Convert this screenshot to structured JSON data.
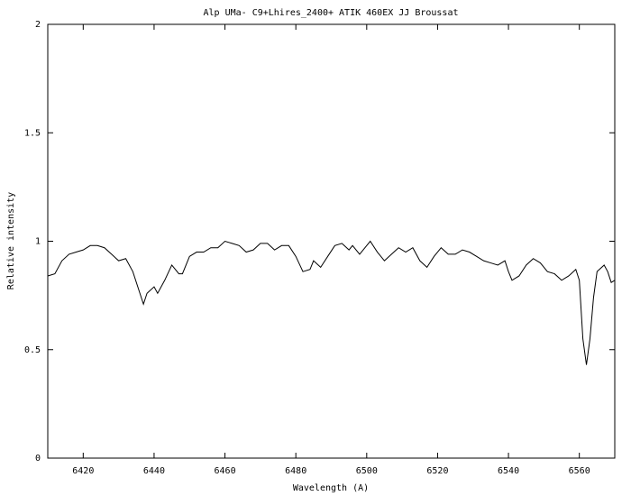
{
  "chart_data": {
    "type": "line",
    "title": "Alp UMa- C9+Lhires_2400+ ATIK 460EX  JJ Broussat",
    "xlabel": "Wavelength (A)",
    "ylabel": "Relative intensity",
    "x": [
      6410,
      6412,
      6414,
      6416,
      6418,
      6420,
      6422,
      6424,
      6426,
      6428,
      6430,
      6432,
      6434,
      6436,
      6437,
      6438,
      6440,
      6441,
      6443,
      6445,
      6447,
      6448,
      6450,
      6452,
      6454,
      6456,
      6458,
      6460,
      6462,
      6464,
      6466,
      6468,
      6470,
      6472,
      6474,
      6476,
      6478,
      6480,
      6482,
      6484,
      6485,
      6487,
      6489,
      6491,
      6493,
      6495,
      6496,
      6498,
      6500,
      6501,
      6503,
      6505,
      6507,
      6509,
      6511,
      6513,
      6515,
      6517,
      6519,
      6521,
      6523,
      6525,
      6527,
      6529,
      6531,
      6533,
      6535,
      6537,
      6539,
      6540,
      6541,
      6543,
      6545,
      6547,
      6549,
      6551,
      6553,
      6555,
      6557,
      6559,
      6560,
      6561,
      6562,
      6563,
      6564,
      6565,
      6567,
      6568,
      6569,
      6570
    ],
    "series": [
      {
        "name": "Alp UMa",
        "color": "#000000",
        "values": [
          0.84,
          0.85,
          0.91,
          0.94,
          0.95,
          0.96,
          0.98,
          0.98,
          0.97,
          0.94,
          0.91,
          0.92,
          0.86,
          0.76,
          0.71,
          0.76,
          0.79,
          0.76,
          0.82,
          0.89,
          0.85,
          0.85,
          0.93,
          0.95,
          0.95,
          0.97,
          0.97,
          1.0,
          0.99,
          0.98,
          0.95,
          0.96,
          0.99,
          0.99,
          0.96,
          0.98,
          0.98,
          0.93,
          0.86,
          0.87,
          0.91,
          0.88,
          0.93,
          0.98,
          0.99,
          0.96,
          0.98,
          0.94,
          0.98,
          1.0,
          0.95,
          0.91,
          0.94,
          0.97,
          0.95,
          0.97,
          0.91,
          0.88,
          0.93,
          0.97,
          0.94,
          0.94,
          0.96,
          0.95,
          0.93,
          0.91,
          0.9,
          0.89,
          0.91,
          0.86,
          0.82,
          0.84,
          0.89,
          0.92,
          0.9,
          0.86,
          0.85,
          0.82,
          0.84,
          0.87,
          0.82,
          0.55,
          0.43,
          0.55,
          0.74,
          0.86,
          0.89,
          0.86,
          0.81,
          0.82
        ]
      }
    ],
    "xlim": [
      6410,
      6570
    ],
    "xticks": [
      6420,
      6440,
      6460,
      6480,
      6500,
      6520,
      6540,
      6560
    ],
    "ylim": [
      0,
      2
    ],
    "yticks": [
      0,
      0.5,
      1,
      1.5,
      2
    ]
  }
}
